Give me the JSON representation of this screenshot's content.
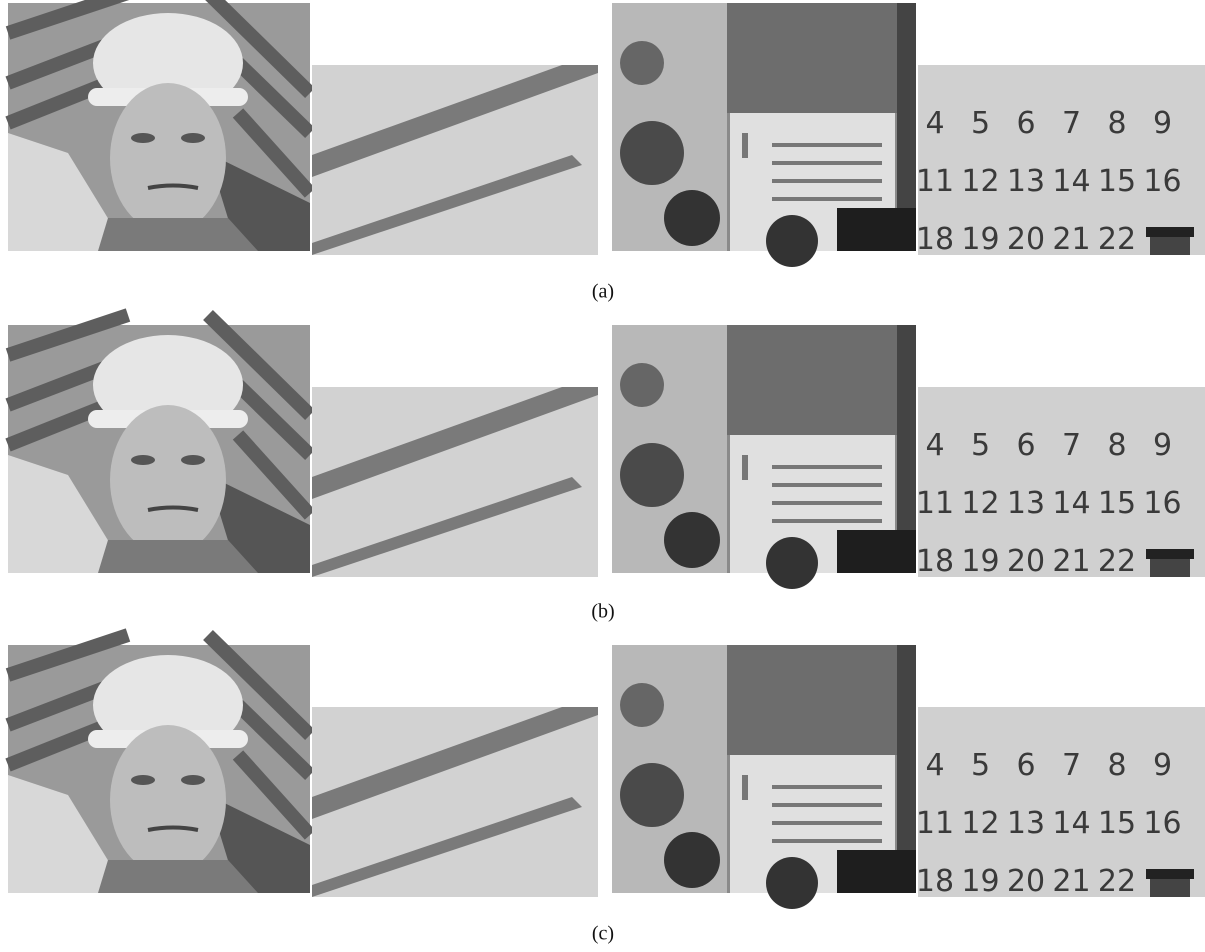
{
  "figure": {
    "captions": [
      "(a)",
      "(b)",
      "(c)"
    ],
    "calendar_numbers": [
      [
        "4",
        "5",
        "6",
        "7",
        "8",
        "9"
      ],
      [
        "11",
        "12",
        "13",
        "14",
        "15",
        "16"
      ],
      [
        "18",
        "19",
        "20",
        "21",
        "22"
      ]
    ]
  }
}
